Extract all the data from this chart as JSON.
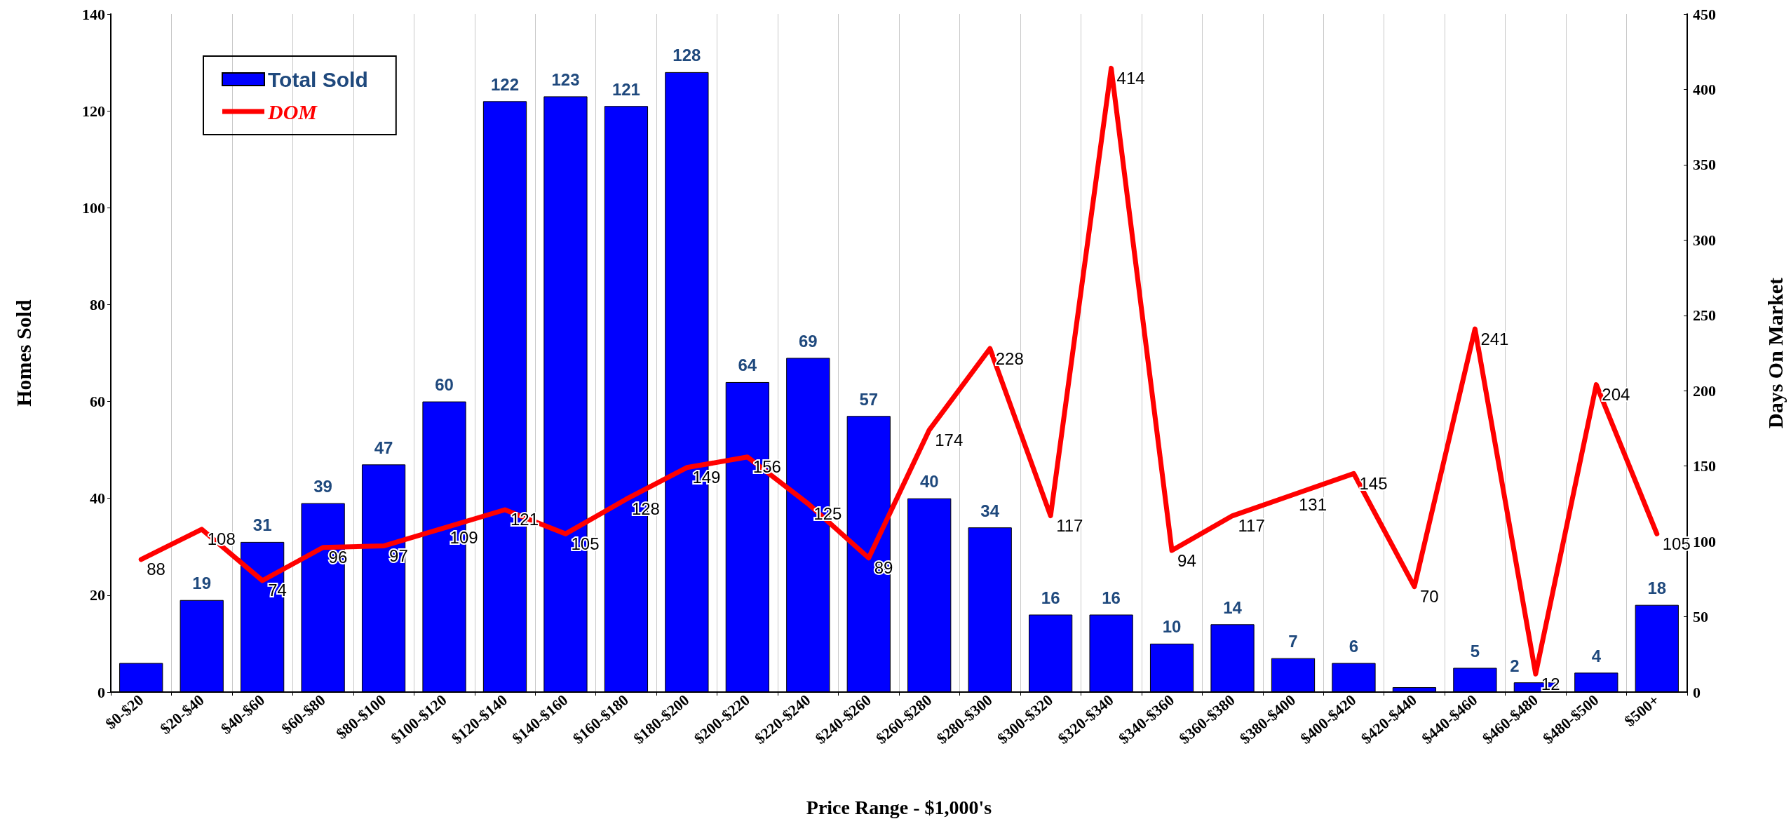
{
  "chart_data": {
    "type": "bar",
    "xlabel": "Price Range - $1,000's",
    "ylabel": "Homes Sold",
    "y2label": "Days On Market",
    "categories": [
      "$0-$20",
      "$20-$40",
      "$40-$60",
      "$60-$80",
      "$80-$100",
      "$100-$120",
      "$120-$140",
      "$140-$160",
      "$160-$180",
      "$180-$200",
      "$200-$220",
      "$220-$240",
      "$240-$260",
      "$260-$280",
      "$280-$300",
      "$300-$320",
      "$320-$340",
      "$340-$360",
      "$360-$380",
      "$380-$400",
      "$400-$420",
      "$420-$440",
      "$440-$460",
      "$460-$480",
      "$480-$500",
      "$500+"
    ],
    "series": [
      {
        "name": "Total Sold",
        "color": "#0000ff",
        "values": [
          6,
          19,
          31,
          39,
          47,
          60,
          122,
          123,
          121,
          128,
          64,
          69,
          57,
          40,
          34,
          16,
          16,
          10,
          14,
          7,
          6,
          1,
          5,
          2,
          4,
          18
        ],
        "value_labels": [
          null,
          "19",
          "31",
          "39",
          "47",
          "60",
          "122",
          "123",
          "121",
          "128",
          "64",
          "69",
          "57",
          "40",
          "34",
          "16",
          "16",
          "10",
          "14",
          "7",
          "6",
          null,
          "5",
          "2",
          "4",
          "18"
        ]
      },
      {
        "name": "DOM",
        "type": "line",
        "axis": "y2",
        "color": "#ff0000",
        "data_labels": true,
        "values": [
          88,
          108,
          74,
          96,
          97,
          109,
          121,
          105,
          128,
          149,
          156,
          125,
          89,
          174,
          228,
          117,
          414,
          94,
          117,
          131,
          145,
          70,
          241,
          12,
          204,
          105
        ]
      }
    ],
    "ylim": [
      0,
      140
    ],
    "yticks": [
      0,
      20,
      40,
      60,
      80,
      100,
      120,
      140
    ],
    "y2lim": [
      0,
      450
    ],
    "y2ticks": [
      0,
      50,
      100,
      150,
      200,
      250,
      300,
      350,
      400,
      450
    ],
    "grid": "x",
    "legend": "top left"
  }
}
